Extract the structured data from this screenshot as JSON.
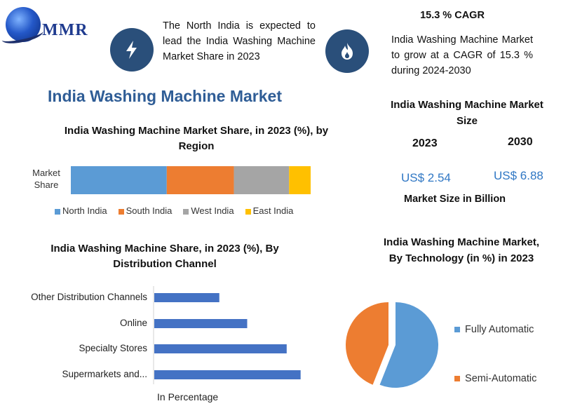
{
  "logo": {
    "text": "MMR"
  },
  "header": {
    "left_text": "The North India is expected to lead the India Washing Machine Market Share in 2023",
    "left_icon": "lightning-icon",
    "right_title": "15.3 % CAGR",
    "right_text": "India Washing Machine Market to grow at a CAGR of 15.3 % during 2024-2030",
    "right_icon": "flame-icon",
    "icon_bg": "#2a4f7a"
  },
  "main_title": "India Washing Machine Market",
  "market_size": {
    "title": "India Washing Machine Market Size",
    "year1": "2023",
    "year2": "2030",
    "value1": "US$ 2.54",
    "value2": "US$ 6.88",
    "footer": "Market Size in Billion"
  },
  "chart_data": [
    {
      "type": "bar",
      "orientation": "horizontal-stacked",
      "title": "India Washing Machine Market Share, in 2023 (%), by Region",
      "categories": [
        "Market Share"
      ],
      "series": [
        {
          "name": "North India",
          "values": [
            40
          ],
          "color": "#5b9bd5"
        },
        {
          "name": "South India",
          "values": [
            28
          ],
          "color": "#ed7d31"
        },
        {
          "name": "West India",
          "values": [
            23
          ],
          "color": "#a5a5a5"
        },
        {
          "name": "East India",
          "values": [
            9
          ],
          "color": "#ffc000"
        }
      ],
      "xlim": [
        0,
        100
      ],
      "legend": "bottom"
    },
    {
      "type": "bar",
      "orientation": "horizontal",
      "title": "India Washing Machine Share, in 2023 (%), By Distribution Channel",
      "categories": [
        "Other Distribution Channels",
        "Online",
        "Specialty Stores",
        "Supermarkets and..."
      ],
      "values": [
        14,
        20,
        28.5,
        31.5
      ],
      "color": "#4472c4",
      "xlabel": "In Percentage"
    },
    {
      "type": "pie",
      "title": "India Washing Machine Market, By Technology (in %) in 2023",
      "labels": [
        "Fully Automatic",
        "Semi-Automatic"
      ],
      "values": [
        56,
        44
      ],
      "colors": [
        "#5b9bd5",
        "#ed7d31"
      ],
      "legend": "right"
    }
  ]
}
